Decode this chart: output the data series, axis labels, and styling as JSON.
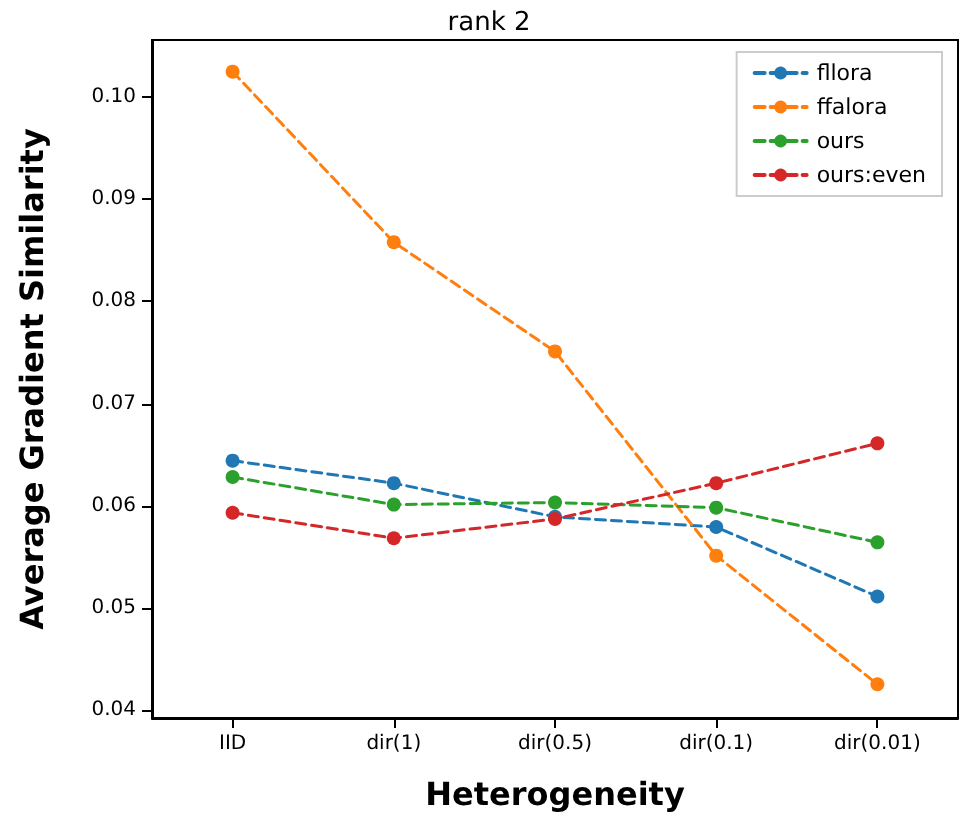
{
  "chart_data": {
    "type": "line",
    "title": "rank 2",
    "xlabel": "Heterogeneity",
    "ylabel": "Average Gradient Similarity",
    "categories": [
      "IID",
      "dir(1)",
      "dir(0.5)",
      "dir(0.1)",
      "dir(0.01)"
    ],
    "series": [
      {
        "name": "fllora",
        "color": "#1f77b4",
        "values": [
          0.0644,
          0.0622,
          0.0589,
          0.0579,
          0.0511
        ]
      },
      {
        "name": "ffalora",
        "color": "#ff7f0e",
        "values": [
          0.1025,
          0.0858,
          0.0751,
          0.0551,
          0.0425
        ]
      },
      {
        "name": "ours",
        "color": "#2ca02c",
        "values": [
          0.0628,
          0.0601,
          0.0603,
          0.0598,
          0.0564
        ]
      },
      {
        "name": "ours:even",
        "color": "#d62728",
        "values": [
          0.0593,
          0.0568,
          0.0587,
          0.0622,
          0.0661
        ]
      }
    ],
    "ylim": [
      0.0392,
      0.1056
    ],
    "yticks": [
      0.04,
      0.05,
      0.06,
      0.07,
      0.08,
      0.09,
      {
        "value": 0.1,
        "label": "0.10"
      }
    ],
    "grid": false,
    "legend": "top right",
    "marker": "circle",
    "line_style": "dashed"
  }
}
